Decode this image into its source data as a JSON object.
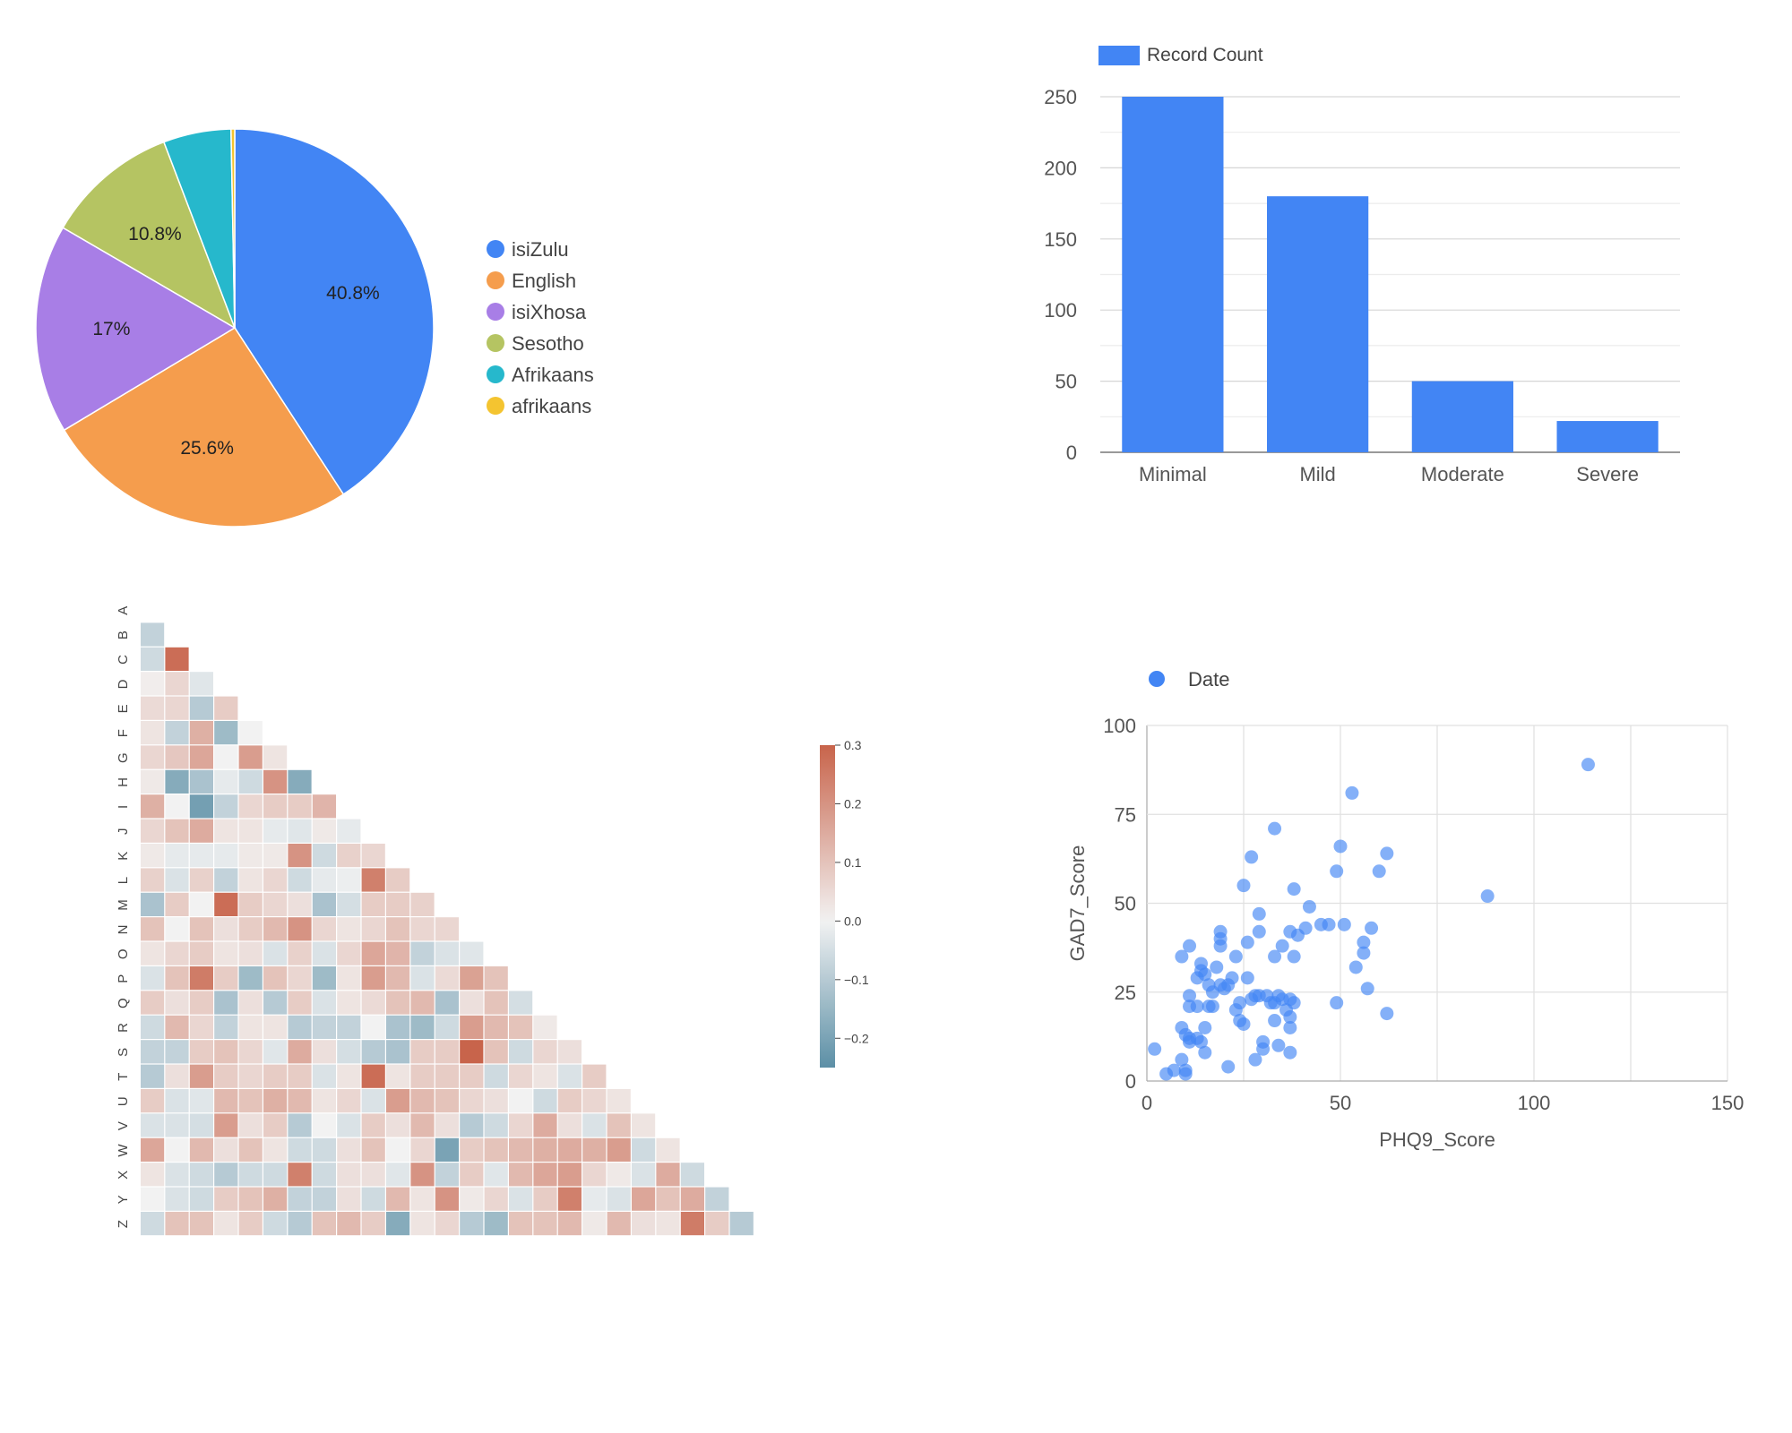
{
  "colors": {
    "blue": "#4285f4",
    "orange": "#f59d4d",
    "purple": "#a87ee6",
    "green": "#b5c462",
    "teal": "#26b8cc",
    "yellow": "#f4c430",
    "grid": "#e0e0e0",
    "axis": "#b0b0b0",
    "neg": "#5c8fa6",
    "pos": "#c8644b",
    "mid": "#f2f2f2"
  },
  "chart_data": [
    {
      "type": "pie",
      "title": "",
      "slices": [
        {
          "label": "isiZulu",
          "value": 40.8,
          "color_key": "blue",
          "pct_label": "40.8%"
        },
        {
          "label": "English",
          "value": 25.6,
          "color_key": "orange",
          "pct_label": "25.6%"
        },
        {
          "label": "isiXhosa",
          "value": 17.0,
          "color_key": "purple",
          "pct_label": "17%"
        },
        {
          "label": "Sesotho",
          "value": 10.8,
          "color_key": "green",
          "pct_label": "10.8%"
        },
        {
          "label": "Afrikaans",
          "value": 5.5,
          "color_key": "teal",
          "pct_label": ""
        },
        {
          "label": "afrikaans",
          "value": 0.3,
          "color_key": "yellow",
          "pct_label": ""
        }
      ],
      "legend_position": "right"
    },
    {
      "type": "bar",
      "title": "",
      "legend": "Record Count",
      "categories": [
        "Minimal",
        "Mild",
        "Moderate",
        "Severe"
      ],
      "values": [
        250,
        180,
        50,
        22
      ],
      "ylim": [
        0,
        250
      ],
      "yticks": [
        0,
        50,
        100,
        150,
        200,
        250
      ],
      "xlabel": "",
      "ylabel": "",
      "grid": true,
      "legend_position": "top-left"
    },
    {
      "type": "heatmap",
      "title": "",
      "labels": [
        "A",
        "B",
        "C",
        "D",
        "E",
        "F",
        "G",
        "H",
        "I",
        "J",
        "K",
        "L",
        "M",
        "N",
        "O",
        "P",
        "Q",
        "R",
        "S",
        "T",
        "U",
        "V",
        "W",
        "X",
        "Y",
        "Z"
      ],
      "vmin": -0.25,
      "vmax": 0.3,
      "colorbar_ticks": [
        0.3,
        0.2,
        0.1,
        0.0,
        -0.1,
        -0.2
      ],
      "colorbar_labels": [
        "0.3",
        "0.2",
        "0.1",
        "0.0",
        "−0.1",
        "−0.2"
      ],
      "lower_triangle": [
        [],
        [
          -0.08
        ],
        [
          -0.06,
          0.28
        ],
        [
          0.01,
          0.06,
          -0.03
        ],
        [
          0.05,
          0.06,
          -0.1,
          0.08
        ],
        [
          0.03,
          -0.08,
          0.14,
          -0.14,
          0.0
        ],
        [
          0.06,
          0.09,
          0.16,
          0.0,
          0.18,
          0.03
        ],
        [
          0.02,
          -0.18,
          -0.12,
          -0.02,
          -0.06,
          0.2,
          -0.18
        ],
        [
          0.14,
          0.0,
          -0.21,
          -0.08,
          0.06,
          0.08,
          0.08,
          0.13
        ],
        [
          0.06,
          0.1,
          0.15,
          0.03,
          0.03,
          -0.02,
          -0.03,
          0.02,
          -0.02
        ],
        [
          0.02,
          -0.02,
          -0.02,
          -0.02,
          0.02,
          0.02,
          0.2,
          -0.06,
          0.07,
          0.06
        ],
        [
          0.07,
          -0.04,
          0.07,
          -0.08,
          0.03,
          0.06,
          -0.06,
          -0.02,
          -0.01,
          0.24,
          0.08
        ],
        [
          -0.12,
          0.08,
          0.0,
          0.28,
          0.08,
          0.06,
          0.04,
          -0.12,
          -0.05,
          0.08,
          0.08,
          0.07
        ],
        [
          0.1,
          0.0,
          0.1,
          0.04,
          0.08,
          0.12,
          0.2,
          0.06,
          0.03,
          0.06,
          0.1,
          0.06,
          0.06
        ],
        [
          0.03,
          0.06,
          0.08,
          0.03,
          0.04,
          -0.04,
          0.07,
          -0.04,
          0.06,
          0.16,
          0.13,
          -0.08,
          -0.04,
          -0.03
        ],
        [
          -0.04,
          0.1,
          0.25,
          0.08,
          -0.14,
          0.1,
          0.06,
          -0.14,
          0.03,
          0.18,
          0.12,
          -0.04,
          0.05,
          0.17,
          0.1
        ],
        [
          0.08,
          0.04,
          0.08,
          -0.12,
          0.04,
          -0.1,
          0.08,
          -0.04,
          0.03,
          0.05,
          0.1,
          0.12,
          -0.12,
          0.04,
          0.1,
          -0.05
        ],
        [
          -0.06,
          0.12,
          0.06,
          -0.08,
          0.03,
          0.03,
          -0.1,
          -0.08,
          -0.08,
          0.0,
          -0.12,
          -0.14,
          -0.06,
          0.18,
          0.12,
          0.1,
          0.02
        ],
        [
          -0.08,
          -0.08,
          0.08,
          0.1,
          0.06,
          -0.03,
          0.15,
          0.04,
          -0.05,
          -0.1,
          -0.12,
          0.08,
          0.08,
          0.3,
          0.1,
          -0.06,
          0.06,
          0.04
        ],
        [
          -0.1,
          0.04,
          0.18,
          0.08,
          0.06,
          0.08,
          0.08,
          -0.04,
          0.03,
          0.28,
          0.03,
          0.08,
          0.08,
          0.08,
          -0.06,
          0.06,
          0.03,
          -0.04,
          0.08
        ],
        [
          0.08,
          -0.04,
          -0.03,
          0.12,
          0.1,
          0.14,
          0.12,
          0.03,
          0.06,
          -0.04,
          0.18,
          0.12,
          0.1,
          0.06,
          0.04,
          0.0,
          -0.06,
          0.08,
          0.06,
          0.03
        ],
        [
          -0.04,
          -0.04,
          -0.05,
          0.18,
          0.04,
          0.08,
          -0.1,
          0.0,
          -0.04,
          0.08,
          0.04,
          0.12,
          0.04,
          -0.1,
          -0.06,
          0.06,
          0.15,
          0.04,
          -0.04,
          0.1,
          0.03
        ],
        [
          0.16,
          0.0,
          0.12,
          0.04,
          0.1,
          0.03,
          -0.06,
          -0.06,
          0.04,
          0.1,
          0.0,
          0.06,
          -0.2,
          0.08,
          0.1,
          0.12,
          0.14,
          0.15,
          0.14,
          0.18,
          -0.06,
          0.03
        ],
        [
          0.03,
          -0.04,
          -0.06,
          -0.1,
          -0.06,
          -0.06,
          0.24,
          -0.06,
          0.04,
          0.04,
          -0.03,
          0.2,
          -0.08,
          0.08,
          -0.03,
          0.12,
          0.16,
          0.18,
          0.06,
          0.02,
          -0.04,
          0.15,
          -0.06
        ],
        [
          0.0,
          -0.04,
          -0.06,
          0.08,
          0.1,
          0.14,
          -0.08,
          -0.08,
          0.04,
          -0.06,
          0.12,
          0.03,
          0.2,
          0.02,
          0.06,
          -0.04,
          0.08,
          0.24,
          -0.02,
          -0.04,
          0.16,
          0.1,
          0.15,
          -0.08
        ],
        [
          -0.06,
          0.1,
          0.1,
          0.03,
          0.08,
          -0.06,
          -0.1,
          0.1,
          0.12,
          0.08,
          -0.18,
          0.03,
          0.06,
          -0.1,
          -0.14,
          0.1,
          0.1,
          0.12,
          0.02,
          0.12,
          0.04,
          0.03,
          0.25,
          0.08,
          -0.1
        ]
      ]
    },
    {
      "type": "scatter",
      "title": "",
      "legend": "Date",
      "xlabel": "PHQ9_Score",
      "ylabel": "GAD7_Score",
      "xlim": [
        0,
        150
      ],
      "ylim": [
        0,
        100
      ],
      "xticks": [
        0,
        50,
        100,
        150
      ],
      "yticks": [
        0,
        25,
        50,
        75,
        100
      ],
      "grid": true,
      "legend_position": "top-left",
      "points": [
        [
          2,
          9
        ],
        [
          5,
          2
        ],
        [
          7,
          3
        ],
        [
          9,
          6
        ],
        [
          10,
          3
        ],
        [
          10,
          2
        ],
        [
          9,
          15
        ],
        [
          10,
          13
        ],
        [
          11,
          12
        ],
        [
          11,
          11
        ],
        [
          13,
          12
        ],
        [
          14,
          11
        ],
        [
          15,
          8
        ],
        [
          15,
          15
        ],
        [
          9,
          35
        ],
        [
          11,
          38
        ],
        [
          11,
          21
        ],
        [
          11,
          24
        ],
        [
          13,
          21
        ],
        [
          13,
          29
        ],
        [
          14,
          31
        ],
        [
          14,
          33
        ],
        [
          15,
          30
        ],
        [
          16,
          21
        ],
        [
          16,
          27
        ],
        [
          17,
          25
        ],
        [
          17,
          21
        ],
        [
          18,
          32
        ],
        [
          19,
          38
        ],
        [
          19,
          40
        ],
        [
          19,
          42
        ],
        [
          19,
          27
        ],
        [
          20,
          26
        ],
        [
          21,
          4
        ],
        [
          21,
          27
        ],
        [
          22,
          29
        ],
        [
          23,
          20
        ],
        [
          23,
          35
        ],
        [
          24,
          17
        ],
        [
          24,
          22
        ],
        [
          25,
          16
        ],
        [
          25,
          55
        ],
        [
          26,
          29
        ],
        [
          26,
          39
        ],
        [
          27,
          23
        ],
        [
          27,
          63
        ],
        [
          28,
          6
        ],
        [
          28,
          24
        ],
        [
          29,
          24
        ],
        [
          29,
          47
        ],
        [
          29,
          42
        ],
        [
          30,
          11
        ],
        [
          30,
          9
        ],
        [
          31,
          24
        ],
        [
          32,
          22
        ],
        [
          33,
          22
        ],
        [
          33,
          17
        ],
        [
          33,
          35
        ],
        [
          33,
          71
        ],
        [
          34,
          10
        ],
        [
          34,
          24
        ],
        [
          35,
          23
        ],
        [
          35,
          38
        ],
        [
          36,
          20
        ],
        [
          37,
          23
        ],
        [
          37,
          15
        ],
        [
          37,
          18
        ],
        [
          37,
          42
        ],
        [
          37,
          8
        ],
        [
          38,
          22
        ],
        [
          38,
          54
        ],
        [
          38,
          35
        ],
        [
          39,
          41
        ],
        [
          41,
          43
        ],
        [
          42,
          49
        ],
        [
          45,
          44
        ],
        [
          47,
          44
        ],
        [
          49,
          59
        ],
        [
          49,
          22
        ],
        [
          50,
          66
        ],
        [
          51,
          44
        ],
        [
          53,
          81
        ],
        [
          54,
          32
        ],
        [
          56,
          36
        ],
        [
          56,
          39
        ],
        [
          57,
          26
        ],
        [
          58,
          43
        ],
        [
          60,
          59
        ],
        [
          62,
          19
        ],
        [
          62,
          64
        ],
        [
          88,
          52
        ],
        [
          114,
          89
        ]
      ]
    }
  ]
}
